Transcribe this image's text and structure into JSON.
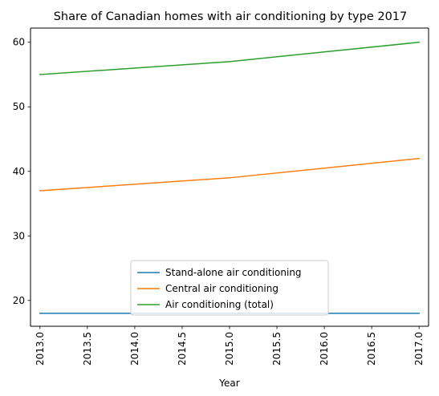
{
  "chart_data": {
    "type": "line",
    "title": "Share of Canadian homes with air conditioning by type 2017",
    "xlabel": "Year",
    "ylabel": "",
    "x": [
      2013,
      2015,
      2017
    ],
    "xlim": [
      2012.9,
      2017.1
    ],
    "ylim": [
      16,
      62.2
    ],
    "xticks": [
      "2013.0",
      "2013.5",
      "2014.0",
      "2014.5",
      "2015.0",
      "2015.5",
      "2016.0",
      "2016.5",
      "2017.0"
    ],
    "yticks": [
      "20",
      "30",
      "40",
      "50",
      "60"
    ],
    "series": [
      {
        "name": "Stand-alone air conditioning",
        "values": [
          18,
          18,
          18
        ],
        "color": "#1f77b4"
      },
      {
        "name": "Central air conditioning",
        "values": [
          37,
          39,
          42
        ],
        "color": "#ff7f0e"
      },
      {
        "name": "Air conditioning (total)",
        "values": [
          55,
          57,
          60
        ],
        "color": "#2ca02c"
      }
    ],
    "legend": "lower center",
    "grid": false
  }
}
